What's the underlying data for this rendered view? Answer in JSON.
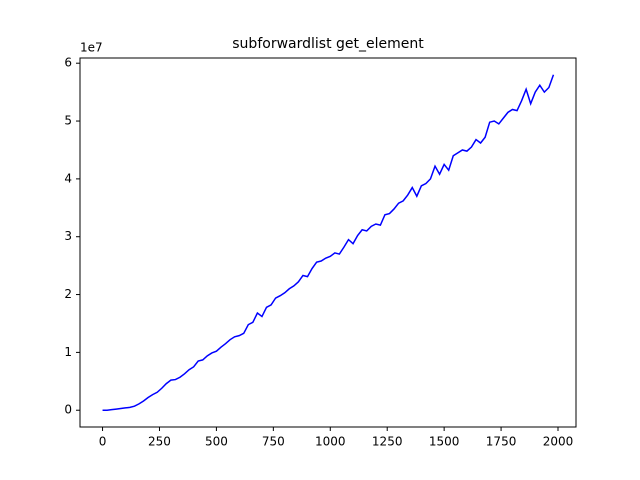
{
  "chart_data": {
    "type": "line",
    "title": "subforwardlist get_element",
    "y_offset_label": "1e7",
    "x": [
      0,
      20,
      40,
      60,
      80,
      100,
      120,
      140,
      160,
      180,
      200,
      220,
      240,
      260,
      280,
      300,
      320,
      340,
      360,
      380,
      400,
      420,
      440,
      460,
      480,
      500,
      520,
      540,
      560,
      580,
      600,
      620,
      640,
      660,
      680,
      700,
      720,
      740,
      760,
      780,
      800,
      820,
      840,
      860,
      880,
      900,
      920,
      940,
      960,
      980,
      1000,
      1020,
      1040,
      1060,
      1080,
      1100,
      1120,
      1140,
      1160,
      1180,
      1200,
      1220,
      1240,
      1260,
      1280,
      1300,
      1320,
      1340,
      1360,
      1380,
      1400,
      1420,
      1440,
      1460,
      1480,
      1500,
      1520,
      1540,
      1560,
      1580,
      1600,
      1620,
      1640,
      1660,
      1680,
      1700,
      1720,
      1740,
      1760,
      1780,
      1800,
      1820,
      1840,
      1860,
      1880,
      1900,
      1920,
      1940,
      1960,
      1980
    ],
    "series": [
      {
        "color": "#0000ff",
        "values": [
          0.0,
          0.0,
          0.01,
          0.02,
          0.03,
          0.04,
          0.05,
          0.07,
          0.11,
          0.16,
          0.22,
          0.27,
          0.31,
          0.38,
          0.46,
          0.52,
          0.53,
          0.57,
          0.63,
          0.7,
          0.75,
          0.85,
          0.87,
          0.94,
          0.99,
          1.02,
          1.09,
          1.15,
          1.22,
          1.27,
          1.29,
          1.33,
          1.48,
          1.52,
          1.68,
          1.62,
          1.78,
          1.82,
          1.94,
          1.98,
          2.03,
          2.1,
          2.15,
          2.22,
          2.33,
          2.31,
          2.45,
          2.56,
          2.58,
          2.63,
          2.66,
          2.72,
          2.7,
          2.82,
          2.95,
          2.88,
          3.02,
          3.12,
          3.1,
          3.18,
          3.22,
          3.2,
          3.38,
          3.4,
          3.48,
          3.58,
          3.62,
          3.72,
          3.85,
          3.7,
          3.88,
          3.92,
          4.0,
          4.22,
          4.08,
          4.25,
          4.15,
          4.4,
          4.45,
          4.5,
          4.48,
          4.55,
          4.68,
          4.62,
          4.72,
          4.98,
          5.0,
          4.95,
          5.05,
          5.15,
          5.2,
          5.18,
          5.35,
          5.55,
          5.3,
          5.5,
          5.62,
          5.5,
          5.58,
          5.8
        ]
      }
    ],
    "xlim": [
      -99,
      2079
    ],
    "xticks": [
      0,
      250,
      500,
      750,
      1000,
      1250,
      1500,
      1750,
      2000
    ],
    "ylim": [
      -0.29,
      6.09
    ],
    "yticks": [
      0,
      1,
      2,
      3,
      4,
      5,
      6
    ]
  }
}
